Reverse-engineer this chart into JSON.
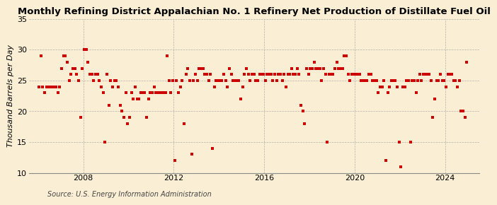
{
  "title": "Monthly Refining District Appalachian No. 1 Refinery Net Production of Distillate Fuel Oil",
  "ylabel": "Thousand Barrels per Day",
  "source": "Source: U.S. Energy Information Administration",
  "background_color": "#faefd4",
  "marker_color": "#cc0000",
  "ylim": [
    10,
    35
  ],
  "yticks": [
    10,
    15,
    20,
    25,
    30,
    35
  ],
  "xlim_start": 2005.6,
  "xlim_end": 2025.5,
  "xticks": [
    2008,
    2012,
    2016,
    2020,
    2024
  ],
  "title_fontsize": 9.5,
  "ylabel_fontsize": 8.0,
  "tick_fontsize": 8.0,
  "source_fontsize": 7.0,
  "data": {
    "2006": [
      24.0,
      29.0,
      24.0,
      23.0,
      24.0,
      24.0,
      24.0,
      24.0,
      24.0,
      24.0,
      23.0,
      24.0
    ],
    "2007": [
      27.0,
      29.0,
      29.0,
      28.0,
      25.0,
      26.0,
      27.0,
      27.0,
      26.0,
      25.0,
      19.0,
      27.0
    ],
    "2008": [
      30.0,
      30.0,
      28.0,
      26.0,
      26.0,
      25.0,
      26.0,
      26.0,
      25.0,
      24.0,
      23.0,
      15.0
    ],
    "2009": [
      26.0,
      21.0,
      25.0,
      24.0,
      25.0,
      25.0,
      24.0,
      21.0,
      20.0,
      19.0,
      23.0,
      18.0
    ],
    "2010": [
      19.0,
      23.0,
      22.0,
      24.0,
      22.0,
      22.0,
      23.0,
      23.0,
      23.0,
      19.0,
      22.0,
      23.0
    ],
    "2011": [
      23.0,
      24.0,
      23.0,
      23.0,
      23.0,
      23.0,
      23.0,
      23.0,
      29.0,
      25.0,
      23.0,
      25.0
    ],
    "2012": [
      12.0,
      25.0,
      23.0,
      24.0,
      25.0,
      18.0,
      26.0,
      27.0,
      25.0,
      13.0,
      25.0,
      26.0
    ],
    "2013": [
      25.0,
      27.0,
      27.0,
      27.0,
      26.0,
      26.0,
      25.0,
      26.0,
      14.0,
      24.0,
      25.0,
      25.0
    ],
    "2014": [
      25.0,
      25.0,
      26.0,
      25.0,
      24.0,
      27.0,
      26.0,
      25.0,
      25.0,
      25.0,
      25.0,
      22.0
    ],
    "2015": [
      24.0,
      26.0,
      27.0,
      26.0,
      25.0,
      26.0,
      26.0,
      25.0,
      25.0,
      26.0,
      26.0,
      26.0
    ],
    "2016": [
      25.0,
      26.0,
      26.0,
      26.0,
      25.0,
      26.0,
      25.0,
      26.0,
      26.0,
      25.0,
      26.0,
      24.0
    ],
    "2017": [
      26.0,
      26.0,
      27.0,
      26.0,
      26.0,
      27.0,
      26.0,
      21.0,
      20.0,
      18.0,
      27.0,
      26.0
    ],
    "2018": [
      27.0,
      27.0,
      28.0,
      27.0,
      27.0,
      27.0,
      25.0,
      27.0,
      26.0,
      15.0,
      26.0,
      26.0
    ],
    "2019": [
      26.0,
      27.0,
      28.0,
      27.0,
      27.0,
      27.0,
      29.0,
      29.0,
      26.0,
      25.0,
      26.0,
      26.0
    ],
    "2020": [
      26.0,
      26.0,
      26.0,
      25.0,
      25.0,
      25.0,
      25.0,
      26.0,
      26.0,
      25.0,
      25.0,
      25.0
    ],
    "2021": [
      23.0,
      24.0,
      24.0,
      25.0,
      12.0,
      23.0,
      24.0,
      25.0,
      25.0,
      25.0,
      24.0,
      15.0
    ],
    "2022": [
      11.0,
      24.0,
      24.0,
      25.0,
      25.0,
      15.0,
      25.0,
      25.0,
      23.0,
      25.0,
      26.0,
      25.0
    ],
    "2023": [
      26.0,
      26.0,
      26.0,
      26.0,
      25.0,
      19.0,
      22.0,
      25.0,
      25.0,
      26.0,
      25.0,
      25.0
    ],
    "2024": [
      24.0,
      26.0,
      26.0,
      26.0,
      25.0,
      25.0,
      24.0,
      25.0,
      20.0,
      20.0,
      19.0,
      28.0
    ]
  }
}
